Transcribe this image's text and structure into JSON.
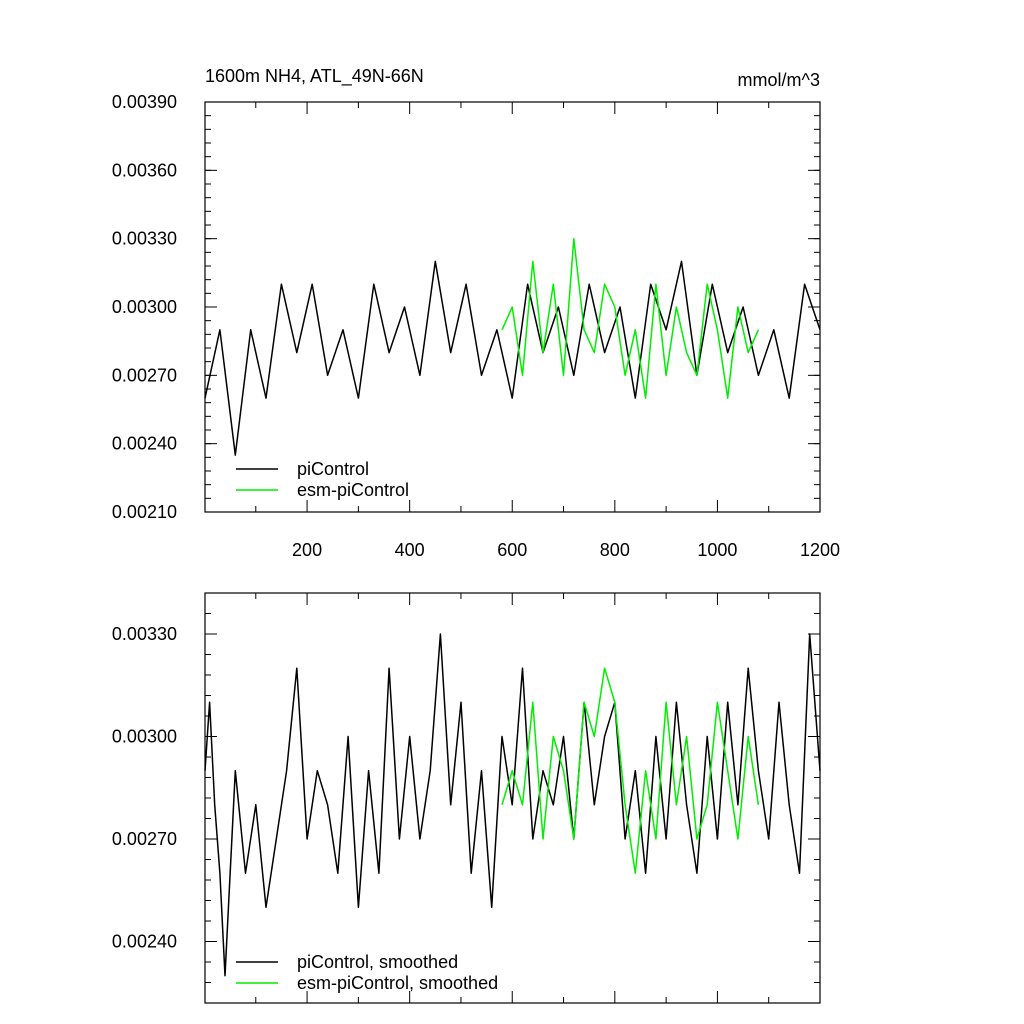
{
  "chart_data": [
    {
      "type": "line",
      "title": "1600m NH4, ATL_49N-66N",
      "units": "mmol/m^3",
      "xlim": [
        1,
        1200
      ],
      "ylim": [
        0.0021,
        0.0039
      ],
      "xticks": [
        200,
        400,
        600,
        800,
        1000,
        1200
      ],
      "yticks": [
        "0.00210",
        "0.00240",
        "0.00270",
        "0.00300",
        "0.00330",
        "0.00360",
        "0.00390"
      ],
      "legend": "bottom-left",
      "series": [
        {
          "name": "piControl",
          "color": "#000000",
          "x": [
            1,
            30,
            60,
            90,
            120,
            150,
            180,
            210,
            240,
            270,
            300,
            330,
            360,
            390,
            420,
            450,
            480,
            510,
            540,
            570,
            600,
            630,
            660,
            690,
            720,
            750,
            780,
            810,
            840,
            870,
            900,
            930,
            960,
            990,
            1020,
            1050,
            1080,
            1110,
            1140,
            1170,
            1200
          ],
          "y": [
            0.0026,
            0.0029,
            0.00235,
            0.0029,
            0.0026,
            0.0031,
            0.0028,
            0.0031,
            0.0027,
            0.0029,
            0.0026,
            0.0031,
            0.0028,
            0.003,
            0.0027,
            0.0032,
            0.0028,
            0.0031,
            0.0027,
            0.0029,
            0.0026,
            0.0031,
            0.0028,
            0.003,
            0.0027,
            0.0031,
            0.0028,
            0.003,
            0.0026,
            0.0031,
            0.0029,
            0.0032,
            0.0027,
            0.0031,
            0.0028,
            0.003,
            0.0027,
            0.0029,
            0.0026,
            0.0031,
            0.0029
          ]
        },
        {
          "name": "esm-piControl",
          "color": "#00ee00",
          "x": [
            580,
            600,
            620,
            640,
            660,
            680,
            700,
            720,
            740,
            760,
            780,
            800,
            820,
            840,
            860,
            880,
            900,
            920,
            940,
            960,
            980,
            1000,
            1020,
            1040,
            1060,
            1080
          ],
          "y": [
            0.0029,
            0.003,
            0.0027,
            0.0032,
            0.0028,
            0.0031,
            0.0027,
            0.0033,
            0.0029,
            0.0028,
            0.0031,
            0.003,
            0.0027,
            0.0029,
            0.0026,
            0.0031,
            0.0027,
            0.003,
            0.0028,
            0.0027,
            0.0031,
            0.0029,
            0.0026,
            0.003,
            0.0028,
            0.0029
          ]
        }
      ]
    },
    {
      "type": "line",
      "xlim": [
        1,
        1200
      ],
      "ylim": [
        0.00222,
        0.00342
      ],
      "xticks": [
        200,
        400,
        600,
        800,
        1000,
        1200
      ],
      "yticks": [
        "0.00240",
        "0.00270",
        "0.00300",
        "0.00330"
      ],
      "legend": "bottom-left",
      "series": [
        {
          "name": "piControl, smoothed",
          "color": "#000000",
          "x": [
            1,
            10,
            20,
            30,
            40,
            60,
            80,
            100,
            120,
            140,
            160,
            180,
            200,
            220,
            240,
            260,
            280,
            300,
            320,
            340,
            360,
            380,
            400,
            420,
            440,
            460,
            480,
            500,
            520,
            540,
            560,
            580,
            600,
            620,
            640,
            660,
            680,
            700,
            720,
            740,
            760,
            780,
            800,
            820,
            840,
            860,
            880,
            900,
            920,
            940,
            960,
            980,
            1000,
            1020,
            1040,
            1060,
            1080,
            1100,
            1120,
            1140,
            1160,
            1180,
            1200
          ],
          "y": [
            0.0029,
            0.0031,
            0.0028,
            0.0026,
            0.0023,
            0.0029,
            0.0026,
            0.0028,
            0.0025,
            0.0027,
            0.0029,
            0.0032,
            0.0027,
            0.0029,
            0.0028,
            0.0026,
            0.003,
            0.0025,
            0.0029,
            0.0026,
            0.0032,
            0.0027,
            0.003,
            0.0027,
            0.0029,
            0.0033,
            0.0028,
            0.0031,
            0.0026,
            0.0029,
            0.0025,
            0.003,
            0.0028,
            0.0032,
            0.0027,
            0.0029,
            0.0028,
            0.003,
            0.0027,
            0.0031,
            0.0028,
            0.003,
            0.0031,
            0.0027,
            0.0029,
            0.0026,
            0.003,
            0.0027,
            0.0031,
            0.0028,
            0.0026,
            0.003,
            0.0027,
            0.0031,
            0.0028,
            0.0032,
            0.0029,
            0.0027,
            0.0031,
            0.0028,
            0.0026,
            0.0033,
            0.0029
          ]
        },
        {
          "name": "esm-piControl, smoothed",
          "color": "#00ee00",
          "x": [
            580,
            600,
            620,
            640,
            660,
            680,
            700,
            720,
            740,
            760,
            780,
            800,
            820,
            840,
            860,
            880,
            900,
            920,
            940,
            960,
            980,
            1000,
            1020,
            1040,
            1060,
            1080
          ],
          "y": [
            0.0028,
            0.0029,
            0.0028,
            0.0031,
            0.0027,
            0.003,
            0.0029,
            0.0027,
            0.0031,
            0.003,
            0.0032,
            0.0031,
            0.0028,
            0.0026,
            0.0029,
            0.0027,
            0.0031,
            0.0028,
            0.003,
            0.0027,
            0.0028,
            0.0031,
            0.0029,
            0.0027,
            0.003,
            0.0028
          ]
        }
      ]
    }
  ]
}
